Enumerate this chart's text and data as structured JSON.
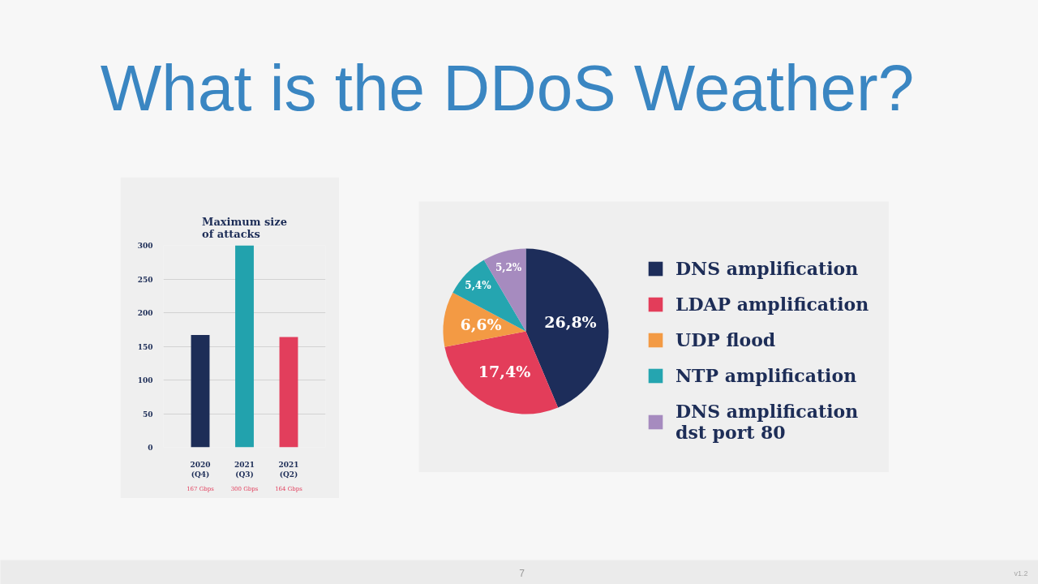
{
  "chart_data": [
    {
      "type": "other",
      "title": "What is the DDoS Weather?",
      "annotations": [
        "7",
        "v1.2"
      ]
    },
    {
      "type": "bar",
      "title": "Maximum size\nof attacks",
      "categories": [
        "2020\n(Q4)",
        "2021\n(Q3)",
        "2021\n(Q2)"
      ],
      "values": [
        167,
        300,
        164
      ],
      "colors": [
        "#1d2d57",
        "#22a2ad",
        "#e23e5c"
      ],
      "value_labels": [
        "167 Gbps",
        "300 Gbps",
        "164 Gbps"
      ],
      "ylim": [
        0,
        300
      ],
      "yticks": [
        0,
        50,
        100,
        150,
        200,
        250,
        300
      ],
      "grid": "y"
    },
    {
      "type": "pie",
      "categories": [
        "DNS amplification",
        "LDAP amplification",
        "UDP flood",
        "NTP amplification",
        "DNS amplification\ndst port 80"
      ],
      "values": [
        26.8,
        17.4,
        6.6,
        5.4,
        5.2
      ],
      "colors": [
        "#1d2d5a",
        "#e33d5a",
        "#f39a44",
        "#25a5b0",
        "#a68bbf"
      ],
      "value_labels": [
        "26,8%",
        "17,4%",
        "6,6%",
        "5,4%",
        "5,2%"
      ],
      "legend": "right"
    }
  ]
}
